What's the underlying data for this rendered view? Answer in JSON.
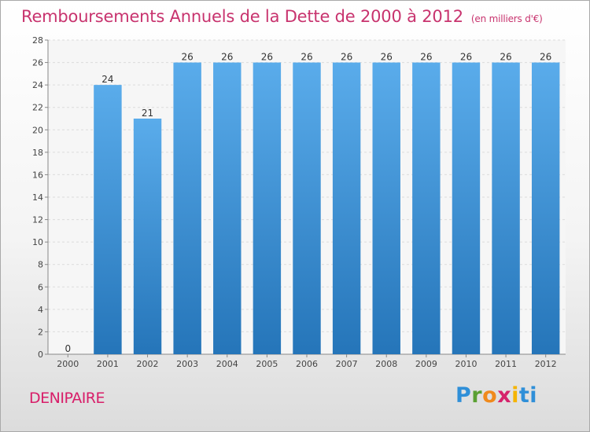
{
  "header": {
    "title": "Remboursements Annuels de la Dette de 2000 à 2012",
    "unit": "(en milliers d'€)"
  },
  "commune": "DENIPAIRE",
  "logo": {
    "letters": [
      "P",
      "r",
      "o",
      "x",
      "i",
      "ti"
    ],
    "brand": "Proxiti"
  },
  "colors": {
    "bar_top": "#5aaceb",
    "bar_bottom": "#2575b9",
    "title": "#c8336e",
    "commune": "#d81e69"
  },
  "chart_data": {
    "type": "bar",
    "title": "Remboursements Annuels de la Dette de 2000 à 2012",
    "unit": "(en milliers d'€)",
    "categories": [
      "2000",
      "2001",
      "2002",
      "2003",
      "2004",
      "2005",
      "2006",
      "2007",
      "2008",
      "2009",
      "2010",
      "2011",
      "2012"
    ],
    "values": [
      0,
      24,
      21,
      26,
      26,
      26,
      26,
      26,
      26,
      26,
      26,
      26,
      26
    ],
    "ylim": [
      0,
      28
    ],
    "yticks": [
      0,
      2,
      4,
      6,
      8,
      10,
      12,
      14,
      16,
      18,
      20,
      22,
      24,
      26,
      28
    ],
    "grid": true,
    "legend": "none"
  }
}
